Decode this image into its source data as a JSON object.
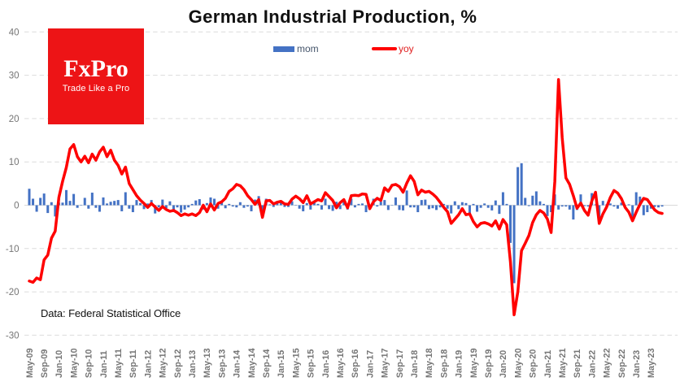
{
  "title": "German Industrial Production, %",
  "source_note": "Data: Federal Statistical Office",
  "logo": {
    "wordmark": "FxPro",
    "tagline": "Trade Like a Pro",
    "bg_color": "#ED1416",
    "text_color": "#FFFFFF"
  },
  "legend": [
    {
      "label": "mom",
      "swatch": "bar",
      "color": "#4472C4",
      "label_color": "#44546A"
    },
    {
      "label": "yoy",
      "swatch": "line",
      "color": "#FF0000",
      "label_color": "#E02020"
    }
  ],
  "colors": {
    "background": "#FFFFFF",
    "bar": "#4472C4",
    "line": "#FF0000",
    "gridline": "#DCDCDC",
    "zero_line": "#D9D9D9",
    "axis_text": "#757575",
    "title_text": "#111111",
    "source_text": "#111111"
  },
  "chart_data": {
    "type": "bar+line combo",
    "x": [
      "May-09",
      "Jun-09",
      "Jul-09",
      "Aug-09",
      "Sep-09",
      "Oct-09",
      "Nov-09",
      "Dec-09",
      "Jan-10",
      "Feb-10",
      "Mar-10",
      "Apr-10",
      "May-10",
      "Jun-10",
      "Jul-10",
      "Aug-10",
      "Sep-10",
      "Oct-10",
      "Nov-10",
      "Dec-10",
      "Jan-11",
      "Feb-11",
      "Mar-11",
      "Apr-11",
      "May-11",
      "Jun-11",
      "Jul-11",
      "Aug-11",
      "Sep-11",
      "Oct-11",
      "Nov-11",
      "Dec-11",
      "Jan-12",
      "Feb-12",
      "Mar-12",
      "Apr-12",
      "May-12",
      "Jun-12",
      "Jul-12",
      "Aug-12",
      "Sep-12",
      "Oct-12",
      "Nov-12",
      "Dec-12",
      "Jan-13",
      "Feb-13",
      "Mar-13",
      "Apr-13",
      "May-13",
      "Jun-13",
      "Jul-13",
      "Aug-13",
      "Sep-13",
      "Oct-13",
      "Nov-13",
      "Dec-13",
      "Jan-14",
      "Feb-14",
      "Mar-14",
      "Apr-14",
      "May-14",
      "Jun-14",
      "Jul-14",
      "Aug-14",
      "Sep-14",
      "Oct-14",
      "Nov-14",
      "Dec-14",
      "Jan-15",
      "Feb-15",
      "Mar-15",
      "Apr-15",
      "May-15",
      "Jun-15",
      "Jul-15",
      "Aug-15",
      "Sep-15",
      "Oct-15",
      "Nov-15",
      "Dec-15",
      "Jan-16",
      "Feb-16",
      "Mar-16",
      "Apr-16",
      "May-16",
      "Jun-16",
      "Jul-16",
      "Aug-16",
      "Sep-16",
      "Oct-16",
      "Nov-16",
      "Dec-16",
      "Jan-17",
      "Feb-17",
      "Mar-17",
      "Apr-17",
      "May-17",
      "Jun-17",
      "Jul-17",
      "Aug-17",
      "Sep-17",
      "Oct-17",
      "Nov-17",
      "Dec-17",
      "Jan-18",
      "Feb-18",
      "Mar-18",
      "Apr-18",
      "May-18",
      "Jun-18",
      "Jul-18",
      "Aug-18",
      "Sep-18",
      "Oct-18",
      "Nov-18",
      "Dec-18",
      "Jan-19",
      "Feb-19",
      "Mar-19",
      "Apr-19",
      "May-19",
      "Jun-19",
      "Jul-19",
      "Aug-19",
      "Sep-19",
      "Oct-19",
      "Nov-19",
      "Dec-19",
      "Jan-20",
      "Feb-20",
      "Mar-20",
      "Apr-20",
      "May-20",
      "Jun-20",
      "Jul-20",
      "Aug-20",
      "Sep-20",
      "Oct-20",
      "Nov-20",
      "Dec-20",
      "Jan-21",
      "Feb-21",
      "Mar-21",
      "Apr-21",
      "May-21",
      "Jun-21",
      "Jul-21",
      "Aug-21",
      "Sep-21",
      "Oct-21",
      "Nov-21",
      "Dec-21",
      "Jan-22",
      "Feb-22",
      "Mar-22",
      "Apr-22",
      "May-22",
      "Jun-22",
      "Jul-22",
      "Aug-22",
      "Sep-22",
      "Oct-22",
      "Nov-22",
      "Dec-22",
      "Jan-23",
      "Feb-23",
      "Mar-23",
      "Apr-23",
      "May-23",
      "Jun-23",
      "Jul-23",
      "Aug-23"
    ],
    "x_tick_labels": [
      "May-09",
      "Sep-09",
      "Jan-10",
      "May-10",
      "Sep-10",
      "Jan-11",
      "May-11",
      "Sep-11",
      "Jan-12",
      "May-12",
      "Sep-12",
      "Jan-13",
      "May-13",
      "Sep-13",
      "Jan-14",
      "May-14",
      "Sep-14",
      "Jan-15",
      "May-15",
      "Sep-15",
      "Jan-16",
      "May-16",
      "Sep-16",
      "Jan-17",
      "May-17",
      "Sep-17",
      "Jan-18",
      "May-18",
      "Sep-18",
      "Jan-19",
      "May-19",
      "Sep-19",
      "Jan-20",
      "May-20",
      "Sep-20",
      "Jan-21",
      "May-21",
      "Sep-21",
      "Jan-22",
      "May-22",
      "Sep-22",
      "Jan-23",
      "May-23"
    ],
    "x_tick_every": 4,
    "series": [
      {
        "name": "mom",
        "type": "bar",
        "values": [
          3.8,
          1.5,
          -1.5,
          1.7,
          2.7,
          -1.8,
          0.7,
          -2.6,
          0.6,
          0.6,
          3.5,
          1.0,
          2.6,
          -0.6,
          0.1,
          1.7,
          -0.8,
          2.9,
          -0.6,
          -1.5,
          1.8,
          0.4,
          0.8,
          1.0,
          1.2,
          -1.4,
          3.0,
          -0.8,
          -1.6,
          1.2,
          0.5,
          -0.9,
          0.4,
          1.2,
          -1.9,
          -0.5,
          1.3,
          -0.7,
          0.9,
          -1.1,
          -0.5,
          -1.7,
          -1.0,
          -0.5,
          0.3,
          1.1,
          1.4,
          -1.0,
          0.5,
          1.8,
          1.5,
          -0.8,
          0.6,
          -0.7,
          0.3,
          -0.3,
          -0.5,
          0.7,
          -0.6,
          -0.3,
          -1.4,
          1.3,
          2.1,
          -2.8,
          1.5,
          0.2,
          -0.4,
          0.8,
          0.6,
          -0.4,
          -0.4,
          0.9,
          0.0,
          -0.8,
          -1.4,
          0.5,
          -1.0,
          0.6,
          0.3,
          -1.0,
          1.5,
          -0.9,
          -1.3,
          0.8,
          -0.9,
          1.0,
          -1.0,
          1.5,
          -0.5,
          0.3,
          0.4,
          -1.6,
          -0.8,
          1.5,
          -0.3,
          0.8,
          1.2,
          -1.1,
          0.0,
          1.8,
          -1.1,
          -1.2,
          3.4,
          -0.5,
          -0.5,
          -1.6,
          1.2,
          1.3,
          -0.9,
          -0.7,
          -1.1,
          -0.5,
          0.3,
          -0.8,
          -1.9,
          0.9,
          -0.9,
          0.7,
          0.5,
          -2.2,
          0.3,
          -1.5,
          -0.6,
          0.4,
          -0.6,
          -1.2,
          1.1,
          -2.0,
          3.0,
          0.3,
          -8.7,
          -18.0,
          8.8,
          9.7,
          1.7,
          -0.2,
          2.2,
          3.2,
          0.9,
          0.3,
          -2.5,
          -1.6,
          2.5,
          -1.0,
          -0.3,
          -0.3,
          -1.0,
          -3.3,
          -1.1,
          2.5,
          -0.2,
          -0.3,
          2.8,
          0.2,
          -3.9,
          1.0,
          0.2,
          0.4,
          -0.3,
          -0.8,
          0.6,
          -0.1,
          0.2,
          -3.1,
          3.0,
          2.0,
          -2.3,
          -1.6,
          -0.8,
          -0.4,
          -0.5,
          -0.3
        ]
      },
      {
        "name": "yoy",
        "type": "line",
        "values": [
          -17.5,
          -17.8,
          -16.8,
          -17.2,
          -12.6,
          -11.5,
          -7.6,
          -6.0,
          1.8,
          5.5,
          8.7,
          13.0,
          14.0,
          11.2,
          10.0,
          11.3,
          9.8,
          11.8,
          10.4,
          12.3,
          13.4,
          11.2,
          12.7,
          10.4,
          9.2,
          7.2,
          8.8,
          5.0,
          3.6,
          2.2,
          1.2,
          0.4,
          -0.5,
          0.4,
          -0.4,
          -1.2,
          -0.3,
          -1.0,
          -1.4,
          -1.2,
          -1.7,
          -2.4,
          -2.0,
          -2.3,
          -2.0,
          -2.4,
          -1.7,
          0.0,
          -1.5,
          0.3,
          -1.1,
          0.4,
          0.8,
          1.6,
          3.2,
          3.8,
          4.8,
          4.5,
          3.6,
          2.2,
          1.3,
          0.2,
          1.3,
          -2.8,
          1.0,
          1.1,
          0.3,
          0.7,
          0.9,
          0.3,
          0.2,
          1.4,
          2.1,
          1.5,
          0.6,
          2.2,
          0.3,
          0.8,
          1.3,
          1.0,
          2.9,
          2.0,
          1.1,
          -0.6,
          0.6,
          1.3,
          -0.6,
          2.2,
          2.3,
          2.2,
          2.6,
          2.5,
          -0.8,
          0.8,
          1.6,
          1.1,
          4.0,
          3.2,
          4.6,
          4.8,
          4.3,
          3.0,
          5.1,
          6.8,
          5.5,
          2.4,
          3.5,
          3.0,
          3.2,
          2.6,
          1.8,
          0.7,
          -0.5,
          -1.5,
          -4.2,
          -3.2,
          -2.2,
          -0.8,
          -2.2,
          -2.0,
          -3.8,
          -5.0,
          -4.2,
          -4.0,
          -4.3,
          -4.8,
          -3.6,
          -5.5,
          -3.3,
          -4.5,
          -13.0,
          -25.3,
          -20.0,
          -10.5,
          -8.8,
          -7.0,
          -4.0,
          -2.2,
          -1.2,
          -1.8,
          -3.2,
          -6.3,
          5.5,
          29.0,
          15.5,
          6.3,
          4.8,
          2.2,
          -0.7,
          0.5,
          -1.2,
          -2.3,
          1.0,
          3.0,
          -4.2,
          -2.0,
          -0.4,
          1.8,
          3.4,
          2.8,
          1.5,
          -0.5,
          -1.6,
          -3.6,
          -1.6,
          0.2,
          1.6,
          1.3,
          0.1,
          -1.1,
          -1.7,
          -1.9
        ]
      }
    ],
    "ylim": [
      -30,
      40
    ],
    "yticks": [
      -30,
      -20,
      -10,
      0,
      10,
      20,
      30,
      40
    ],
    "grid": "horizontal dashed"
  }
}
